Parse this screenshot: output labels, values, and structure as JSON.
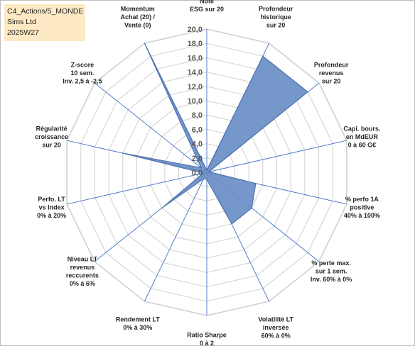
{
  "info_box": {
    "line1": "C4_Actions/5_MONDE",
    "line2": "Sims Ltd",
    "line3": "2025W27"
  },
  "chart_data": {
    "type": "radar",
    "r_range": [
      0,
      20
    ],
    "r_step": 2,
    "tick_labels": [
      "0,0",
      "2,0",
      "4,0",
      "6,0",
      "8,0",
      "10,0",
      "12,0",
      "14,0",
      "16,0",
      "18,0",
      "20,0"
    ],
    "grid": true,
    "axes": [
      [
        "Note",
        "ESG sur 20"
      ],
      [
        "Profondeur",
        "historique",
        "sur 20"
      ],
      [
        "Profondeur",
        "revenus",
        "sur 20"
      ],
      [
        "Capi. bours.",
        "en MdEUR",
        "0 à 60 G€"
      ],
      [
        "% perfo 1A",
        "positive",
        "40% à 100%"
      ],
      [
        "% perte max.",
        "sur 1 sem.",
        "Inv. 60% à 0%"
      ],
      [
        "Volatilité LT",
        "inversée",
        "60% à 0%"
      ],
      [
        "Ratio Sharpe",
        "0 à 2"
      ],
      [
        "Rendement LT",
        "0% à 30%"
      ],
      [
        "Niveau LT",
        "revenus",
        "reccurents",
        "0% à 6%"
      ],
      [
        "Perfo. LT",
        "vs Index",
        "0% à 20%"
      ],
      [
        "Régularité",
        "croissance",
        "sur 20"
      ],
      [
        "Z-score",
        "10 sem.",
        "Inv. 2,5 à -2,5"
      ],
      [
        "Momentum",
        "Achat (20) /",
        "Vente (0)"
      ]
    ],
    "series": [
      {
        "values": [
          0.3,
          18.0,
          18.0,
          0.3,
          7.0,
          8.0,
          8.0,
          1.0,
          1.0,
          8.0,
          0.5,
          12.0,
          1.0,
          20.0
        ],
        "color": "#4f74b0",
        "fill": "#6a8ec6"
      }
    ],
    "colors": {
      "grid": "#d0d0d0",
      "spoke": "#4472c4"
    }
  }
}
